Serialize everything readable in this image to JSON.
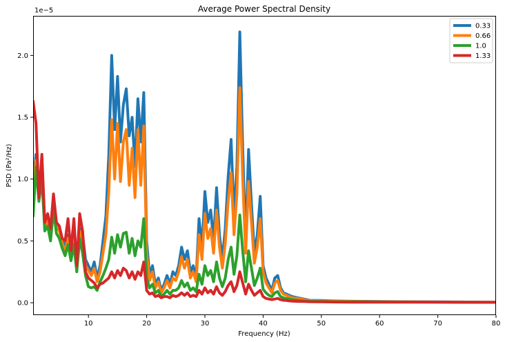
{
  "chart_data": {
    "type": "line",
    "title": "Average Power Spectral Density",
    "xlabel": "Frequency (Hz)",
    "ylabel": "PSD (Pa²/Hz)",
    "y_offset_text": "1e−5",
    "y_unit_scale": 1e-05,
    "xlim": [
      0.5,
      80
    ],
    "ylim": [
      -0.1,
      2.32
    ],
    "x_ticks": [
      10,
      20,
      30,
      40,
      50,
      60,
      70,
      80
    ],
    "x_tick_labels": [
      "10",
      "20",
      "30",
      "40",
      "50",
      "60",
      "70",
      "80"
    ],
    "y_ticks": [
      0.0,
      0.5,
      1.0,
      1.5,
      2.0
    ],
    "y_tick_labels": [
      "0.0",
      "0.5",
      "1.0",
      "1.5",
      "2.0"
    ],
    "grid": false,
    "legend_position": "top-right",
    "x": [
      0.5,
      1,
      1.5,
      2,
      2.5,
      3,
      3.5,
      4,
      4.5,
      5,
      5.5,
      6,
      6.5,
      7,
      7.5,
      8,
      8.5,
      9,
      9.5,
      10,
      10.5,
      11,
      11.5,
      12,
      12.5,
      13,
      13.5,
      14,
      14.5,
      15,
      15.5,
      16,
      16.5,
      17,
      17.5,
      18,
      18.5,
      19,
      19.5,
      20,
      20.5,
      21,
      21.5,
      22,
      22.5,
      23,
      23.5,
      24,
      24.5,
      25,
      25.5,
      26,
      26.5,
      27,
      27.5,
      28,
      28.5,
      29,
      29.5,
      30,
      30.5,
      31,
      31.5,
      32,
      32.5,
      33,
      33.5,
      34,
      34.5,
      35,
      35.5,
      36,
      36.5,
      37,
      37.5,
      38,
      38.5,
      39,
      39.5,
      40,
      40.5,
      41,
      41.5,
      42,
      42.5,
      43,
      43.5,
      44,
      44.5,
      45,
      46,
      47,
      48,
      50,
      52,
      55,
      60,
      65,
      70,
      75,
      80
    ],
    "series": [
      {
        "name": "0.33",
        "color": "#1f77b4",
        "values": [
          0.95,
          1.2,
          0.85,
          1.15,
          0.6,
          0.7,
          0.55,
          0.85,
          0.65,
          0.6,
          0.5,
          0.45,
          0.55,
          0.4,
          0.55,
          0.3,
          0.6,
          0.55,
          0.35,
          0.3,
          0.25,
          0.33,
          0.2,
          0.3,
          0.5,
          0.7,
          1.2,
          2.0,
          1.4,
          1.83,
          1.3,
          1.6,
          1.73,
          1.35,
          1.5,
          1.1,
          1.65,
          1.3,
          1.7,
          0.5,
          0.22,
          0.3,
          0.15,
          0.2,
          0.1,
          0.15,
          0.22,
          0.15,
          0.25,
          0.22,
          0.3,
          0.45,
          0.35,
          0.42,
          0.25,
          0.3,
          0.2,
          0.68,
          0.45,
          0.9,
          0.65,
          0.75,
          0.5,
          0.93,
          0.55,
          0.35,
          0.6,
          1.02,
          1.32,
          0.7,
          1.1,
          2.19,
          1.25,
          0.5,
          1.24,
          0.8,
          0.4,
          0.55,
          0.86,
          0.3,
          0.2,
          0.15,
          0.1,
          0.2,
          0.22,
          0.12,
          0.08,
          0.07,
          0.06,
          0.05,
          0.04,
          0.03,
          0.02,
          0.018,
          0.015,
          0.012,
          0.01,
          0.008,
          0.007,
          0.006,
          0.005
        ]
      },
      {
        "name": "0.66",
        "color": "#ff7f0e",
        "values": [
          0.95,
          1.15,
          0.85,
          1.1,
          0.6,
          0.68,
          0.55,
          0.82,
          0.62,
          0.58,
          0.48,
          0.42,
          0.52,
          0.38,
          0.52,
          0.28,
          0.58,
          0.5,
          0.3,
          0.26,
          0.22,
          0.28,
          0.17,
          0.25,
          0.4,
          0.55,
          0.9,
          1.48,
          1.0,
          1.45,
          0.98,
          1.3,
          1.4,
          0.95,
          1.25,
          0.85,
          1.4,
          0.95,
          1.43,
          0.4,
          0.18,
          0.25,
          0.12,
          0.17,
          0.08,
          0.12,
          0.18,
          0.12,
          0.2,
          0.18,
          0.25,
          0.37,
          0.28,
          0.35,
          0.2,
          0.25,
          0.17,
          0.55,
          0.35,
          0.72,
          0.52,
          0.6,
          0.4,
          0.75,
          0.45,
          0.28,
          0.48,
          0.82,
          1.05,
          0.55,
          0.88,
          1.74,
          1.0,
          0.4,
          0.98,
          0.65,
          0.32,
          0.45,
          0.68,
          0.25,
          0.16,
          0.12,
          0.08,
          0.16,
          0.18,
          0.1,
          0.07,
          0.06,
          0.05,
          0.04,
          0.035,
          0.025,
          0.018,
          0.015,
          0.013,
          0.011,
          0.009,
          0.007,
          0.006,
          0.005,
          0.004
        ]
      },
      {
        "name": "1.0",
        "color": "#2ca02c",
        "values": [
          0.7,
          1.1,
          0.82,
          1.0,
          0.58,
          0.62,
          0.5,
          0.75,
          0.56,
          0.52,
          0.44,
          0.38,
          0.47,
          0.34,
          0.47,
          0.25,
          0.52,
          0.4,
          0.22,
          0.13,
          0.12,
          0.13,
          0.1,
          0.17,
          0.22,
          0.28,
          0.35,
          0.53,
          0.4,
          0.55,
          0.45,
          0.56,
          0.57,
          0.4,
          0.52,
          0.38,
          0.5,
          0.45,
          0.68,
          0.2,
          0.12,
          0.15,
          0.08,
          0.1,
          0.05,
          0.07,
          0.1,
          0.07,
          0.1,
          0.1,
          0.12,
          0.18,
          0.13,
          0.16,
          0.1,
          0.12,
          0.09,
          0.23,
          0.15,
          0.3,
          0.22,
          0.26,
          0.17,
          0.33,
          0.2,
          0.13,
          0.2,
          0.35,
          0.45,
          0.23,
          0.38,
          0.71,
          0.42,
          0.17,
          0.42,
          0.28,
          0.14,
          0.2,
          0.28,
          0.11,
          0.08,
          0.06,
          0.05,
          0.08,
          0.09,
          0.05,
          0.04,
          0.035,
          0.03,
          0.025,
          0.02,
          0.015,
          0.012,
          0.01,
          0.009,
          0.008,
          0.007,
          0.006,
          0.005,
          0.004,
          0.003
        ]
      },
      {
        "name": "1.33",
        "color": "#d62728",
        "values": [
          1.63,
          1.45,
          0.85,
          1.2,
          0.65,
          0.72,
          0.6,
          0.88,
          0.65,
          0.62,
          0.52,
          0.5,
          0.68,
          0.42,
          0.68,
          0.3,
          0.72,
          0.58,
          0.25,
          0.2,
          0.18,
          0.16,
          0.12,
          0.15,
          0.16,
          0.18,
          0.2,
          0.25,
          0.2,
          0.26,
          0.22,
          0.28,
          0.26,
          0.2,
          0.25,
          0.19,
          0.25,
          0.22,
          0.33,
          0.1,
          0.07,
          0.08,
          0.05,
          0.06,
          0.04,
          0.05,
          0.05,
          0.04,
          0.06,
          0.05,
          0.06,
          0.08,
          0.06,
          0.08,
          0.05,
          0.06,
          0.05,
          0.1,
          0.07,
          0.12,
          0.08,
          0.1,
          0.07,
          0.13,
          0.08,
          0.06,
          0.09,
          0.14,
          0.17,
          0.09,
          0.14,
          0.25,
          0.16,
          0.07,
          0.15,
          0.1,
          0.06,
          0.08,
          0.1,
          0.05,
          0.035,
          0.03,
          0.025,
          0.03,
          0.035,
          0.025,
          0.02,
          0.018,
          0.015,
          0.013,
          0.011,
          0.01,
          0.008,
          0.007,
          0.006,
          0.005,
          0.005,
          0.004,
          0.004,
          0.003,
          0.003
        ]
      }
    ]
  }
}
